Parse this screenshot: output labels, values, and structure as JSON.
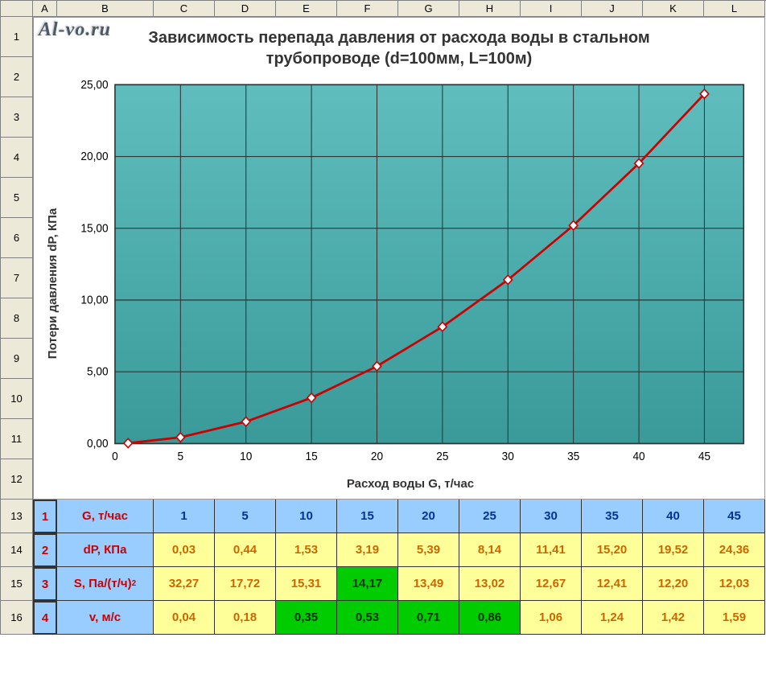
{
  "watermark": "Al-vo.ru",
  "column_headers": [
    "",
    "A",
    "B",
    "C",
    "D",
    "E",
    "F",
    "G",
    "H",
    "I",
    "J",
    "K",
    "L"
  ],
  "row_headers": [
    "1",
    "2",
    "3",
    "4",
    "5",
    "6",
    "7",
    "8",
    "9",
    "10",
    "11",
    "12",
    "13",
    "14",
    "15",
    "16"
  ],
  "chart": {
    "title": "Зависимость перепада давления от расхода воды в стальном трубопроводе (d=100мм, L=100м)",
    "ylabel": "Потери давления dP, КПа",
    "xlabel": "Расход воды G, т/час",
    "type": "line",
    "x_values": [
      1,
      5,
      10,
      15,
      20,
      25,
      30,
      35,
      40,
      45
    ],
    "y_values": [
      0.03,
      0.44,
      1.53,
      3.19,
      5.39,
      8.14,
      11.41,
      15.2,
      19.52,
      24.36
    ],
    "xlim": [
      0,
      48
    ],
    "ylim": [
      0,
      25
    ],
    "ytick_step": 5,
    "xtick_step": 5,
    "yticks": [
      "0,00",
      "5,00",
      "10,00",
      "15,00",
      "20,00",
      "25,00"
    ],
    "xticks": [
      "0",
      "5",
      "10",
      "15",
      "20",
      "25",
      "30",
      "35",
      "40",
      "45"
    ],
    "background_color": "#5fbdbd",
    "background_color_2": "#3a9a9a",
    "grid_color": "#333333",
    "line_color": "#cc0000",
    "line_width": 2.5,
    "marker_fill": "#ffffff",
    "marker_stroke": "#cc0000",
    "marker_size": 5,
    "title_fontsize": 20,
    "label_fontsize": 15,
    "tick_fontsize": 13
  },
  "table": {
    "rows": [
      {
        "num": "1",
        "label": "G, т/час",
        "values": [
          "1",
          "5",
          "10",
          "15",
          "20",
          "25",
          "30",
          "35",
          "40",
          "45"
        ],
        "cell_class": [
          "blue-val",
          "blue-val",
          "blue-val",
          "blue-val",
          "blue-val",
          "blue-val",
          "blue-val",
          "blue-val",
          "blue-val",
          "blue-val"
        ]
      },
      {
        "num": "2",
        "label": "dP, КПа",
        "values": [
          "0,03",
          "0,44",
          "1,53",
          "3,19",
          "5,39",
          "8,14",
          "11,41",
          "15,20",
          "19,52",
          "24,36"
        ],
        "cell_class": [
          "yellow-cell",
          "yellow-cell",
          "yellow-cell",
          "yellow-cell",
          "yellow-cell",
          "yellow-cell",
          "yellow-cell",
          "yellow-cell",
          "yellow-cell",
          "yellow-cell"
        ]
      },
      {
        "num": "3",
        "label": "S, Па/(т/ч)²",
        "label_html": "S, Па/(т/ч)<sup>2</sup>",
        "values": [
          "32,27",
          "17,72",
          "15,31",
          "14,17",
          "13,49",
          "13,02",
          "12,67",
          "12,41",
          "12,20",
          "12,03"
        ],
        "cell_class": [
          "yellow-cell",
          "yellow-cell",
          "yellow-cell",
          "green-cell",
          "yellow-cell",
          "yellow-cell",
          "yellow-cell",
          "yellow-cell",
          "yellow-cell",
          "yellow-cell"
        ]
      },
      {
        "num": "4",
        "label": "v, м/c",
        "values": [
          "0,04",
          "0,18",
          "0,35",
          "0,53",
          "0,71",
          "0,86",
          "1,06",
          "1,24",
          "1,42",
          "1,59"
        ],
        "cell_class": [
          "yellow-cell",
          "yellow-cell",
          "green-cell",
          "green-cell",
          "green-cell",
          "green-cell",
          "yellow-cell",
          "yellow-cell",
          "yellow-cell",
          "yellow-cell"
        ]
      }
    ],
    "num_bg": "#99ccff",
    "label_bg": "#99ccff",
    "label_color": "#cc0000",
    "yellow_bg": "#ffff99",
    "yellow_color": "#cc6600",
    "green_bg": "#00cc00",
    "blue_val_color": "#003399"
  }
}
